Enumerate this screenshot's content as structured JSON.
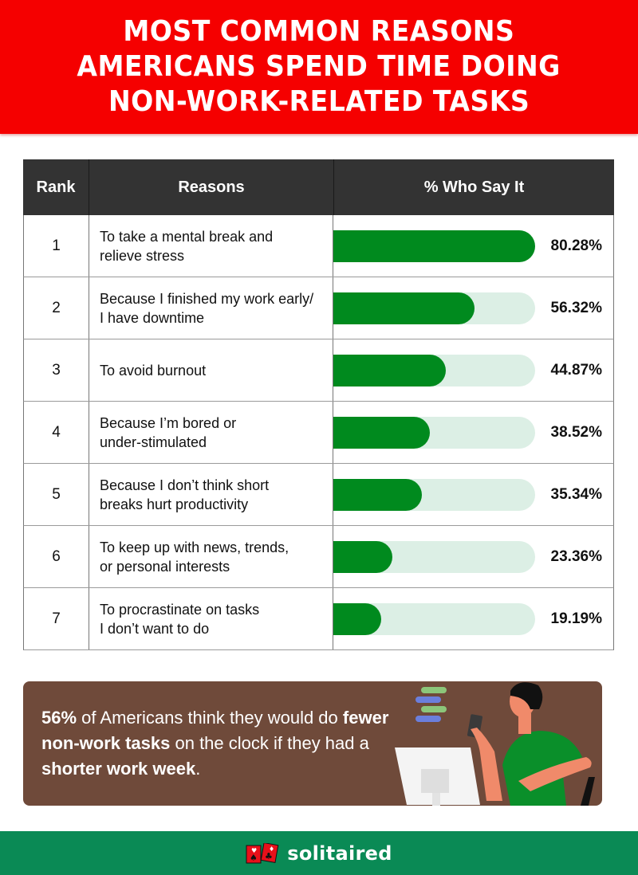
{
  "header": {
    "title_lines": [
      "MOST COMMON REASONS",
      "AMERICANS SPEND TIME DOING",
      "NON-WORK-RELATED TASKS"
    ],
    "bg_color": "#f50000"
  },
  "table": {
    "columns": [
      "Rank",
      "Reasons",
      "% Who Say It"
    ],
    "rows": [
      {
        "rank": "1",
        "reason_lines": [
          "To take a mental break and",
          "relieve stress"
        ],
        "value": 80.28,
        "label": "80.28%"
      },
      {
        "rank": "2",
        "reason_lines": [
          "Because I finished my work early/",
          "I have downtime"
        ],
        "value": 56.32,
        "label": "56.32%"
      },
      {
        "rank": "3",
        "reason_lines": [
          "To avoid burnout"
        ],
        "value": 44.87,
        "label": "44.87%"
      },
      {
        "rank": "4",
        "reason_lines": [
          "Because I’m bored or",
          "under-stimulated"
        ],
        "value": 38.52,
        "label": "38.52%"
      },
      {
        "rank": "5",
        "reason_lines": [
          "Because I don’t think short",
          "breaks hurt productivity"
        ],
        "value": 35.34,
        "label": "35.34%"
      },
      {
        "rank": "6",
        "reason_lines": [
          "To keep up with news, trends,",
          "or personal interests"
        ],
        "value": 23.36,
        "label": "23.36%"
      },
      {
        "rank": "7",
        "reason_lines": [
          "To procrastinate on tasks",
          "I don’t want to do"
        ],
        "value": 19.19,
        "label": "19.19%"
      }
    ],
    "bar_color": "#008a1e",
    "track_color": "#dcefe5"
  },
  "callout": {
    "segments": [
      {
        "text": "56%",
        "bold": true
      },
      {
        "text": " of Americans think they would do ",
        "bold": false
      },
      {
        "text": "fewer non-work tasks",
        "bold": true
      },
      {
        "text": " on the clock if they had a ",
        "bold": false
      },
      {
        "text": "shorter work week",
        "bold": true
      },
      {
        "text": ".",
        "bold": false
      }
    ],
    "bg_color": "#6f4a3a"
  },
  "footer": {
    "brand": "solitaired",
    "bg_color": "#0a8a55"
  },
  "chart_data": {
    "type": "bar",
    "orientation": "horizontal",
    "title": "Most Common Reasons Americans Spend Time Doing Non-Work-Related Tasks",
    "xlabel": "% Who Say It",
    "ylabel": "Reasons",
    "categories": [
      "To take a mental break and relieve stress",
      "Because I finished my work early/I have downtime",
      "To avoid burnout",
      "Because I’m bored or under-stimulated",
      "Because I don’t think short breaks hurt productivity",
      "To keep up with news, trends, or personal interests",
      "To procrastinate on tasks I don’t want to do"
    ],
    "values": [
      80.28,
      56.32,
      44.87,
      38.52,
      35.34,
      23.36,
      19.19
    ],
    "units": "%",
    "grid": false,
    "legend": null
  }
}
